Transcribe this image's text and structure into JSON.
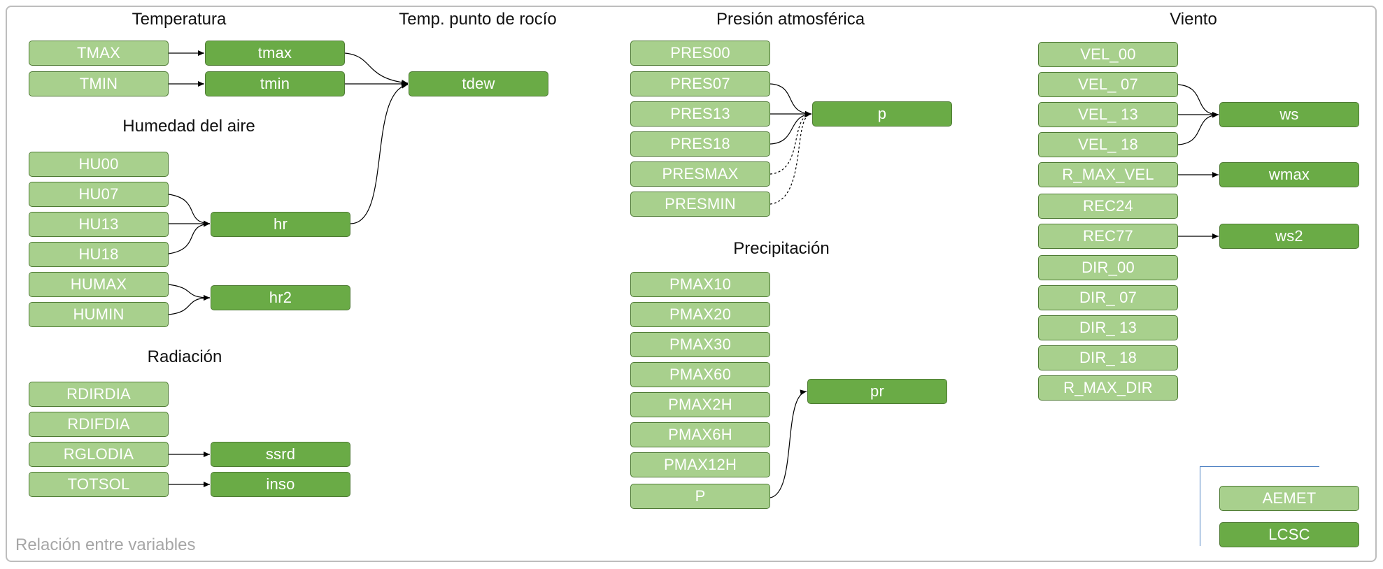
{
  "caption": "Relación entre variables",
  "headings": {
    "temperatura": "Temperatura",
    "dew_point": "Temp. punto de rocío",
    "humedad": "Humedad del aire",
    "radiacion": "Radiación",
    "presion": "Presión atmosférica",
    "precipitacion": "Precipitación",
    "viento": "Viento"
  },
  "nodes": {
    "TMAX": "TMAX",
    "TMIN": "TMIN",
    "tmax": "tmax",
    "tmin": "tmin",
    "tdew": "tdew",
    "HU00": "HU00",
    "HU07": "HU07",
    "HU13": "HU13",
    "HU18": "HU18",
    "HUMAX": "HUMAX",
    "HUMIN": "HUMIN",
    "hr": "hr",
    "hr2": "hr2",
    "RDIRDIA": "RDIRDIA",
    "RDIFDIA": "RDIFDIA",
    "RGLODIA": "RGLODIA",
    "TOTSOL": "TOTSOL",
    "ssrd": "ssrd",
    "inso": "inso",
    "PRES00": "PRES00",
    "PRES07": "PRES07",
    "PRES13": "PRES13",
    "PRES18": "PRES18",
    "PRESMAX": "PRESMAX",
    "PRESMIN": "PRESMIN",
    "p": "p",
    "PMAX10": "PMAX10",
    "PMAX20": "PMAX20",
    "PMAX30": "PMAX30",
    "PMAX60": "PMAX60",
    "PMAX2H": "PMAX2H",
    "PMAX6H": "PMAX6H",
    "PMAX12H": "PMAX12H",
    "P": "P",
    "pr": "pr",
    "VEL_00": "VEL_00",
    "VEL_07": "VEL_ 07",
    "VEL_13": "VEL_ 13",
    "VEL_18": "VEL_ 18",
    "R_MAX_VEL": "R_MAX_VEL",
    "REC24": "REC24",
    "REC77": "REC77",
    "DIR_00": "DIR_00",
    "DIR_07": "DIR_ 07",
    "DIR_13": "DIR_ 13",
    "DIR_18": "DIR_ 18",
    "R_MAX_DIR": "R_MAX_DIR",
    "ws": "ws",
    "wmax": "wmax",
    "ws2": "ws2"
  },
  "legend": {
    "aemet": "AEMET",
    "lcsc": "LCSC"
  },
  "colors": {
    "aemet_fill": "#a8d08d",
    "lcsc_fill": "#6aab46",
    "border": "#4e7a34",
    "legend_bracket": "#4a7fc1"
  }
}
